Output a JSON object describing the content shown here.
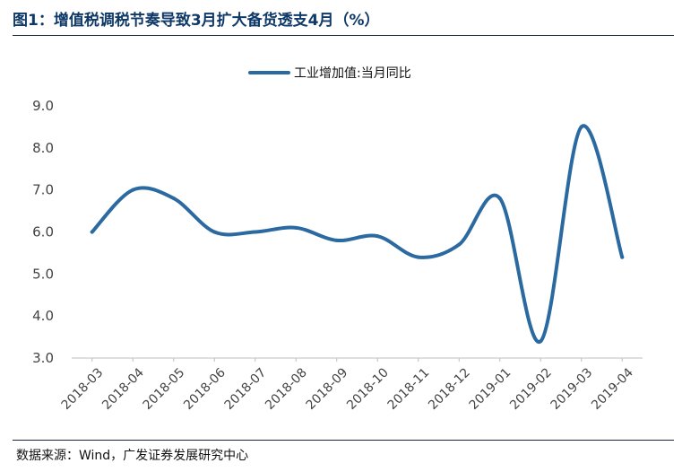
{
  "figure": {
    "title": "图1：增值税调税节奏导致3月扩大备货透支4月（%）",
    "source": "数据来源：Wind，广发证券发展研究中心"
  },
  "colors": {
    "series": "#2a6aa1",
    "title": "#0f3a68",
    "axis": "#bfbfbf"
  },
  "chart_data": {
    "type": "line",
    "title": "",
    "xlabel": "",
    "ylabel": "",
    "categories": [
      "2018-03",
      "2018-04",
      "2018-05",
      "2018-06",
      "2018-07",
      "2018-08",
      "2018-09",
      "2018-10",
      "2018-11",
      "2018-12",
      "2019-01",
      "2019-02",
      "2019-03",
      "2019-04"
    ],
    "series": [
      {
        "name": "工业增加值:当月同比",
        "values": [
          6.0,
          7.0,
          6.8,
          6.0,
          6.0,
          6.1,
          5.8,
          5.9,
          5.4,
          5.7,
          6.8,
          3.4,
          8.5,
          5.4
        ]
      }
    ],
    "ylim": [
      3.0,
      9.0
    ],
    "yticks": [
      "3.0",
      "4.0",
      "5.0",
      "6.0",
      "7.0",
      "8.0",
      "9.0"
    ],
    "grid": false,
    "legend": "top-center"
  }
}
